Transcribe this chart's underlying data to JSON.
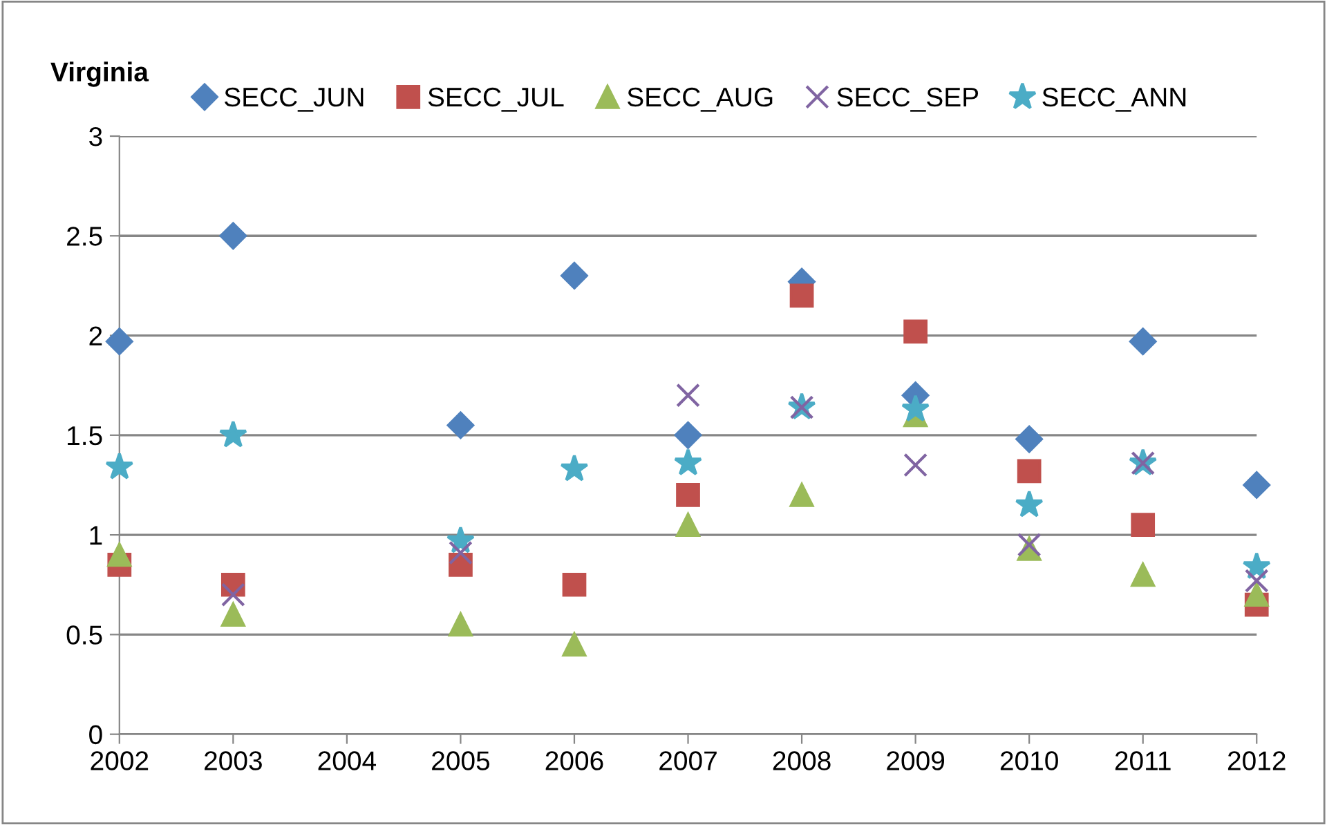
{
  "chart_data": {
    "type": "scatter",
    "title": "Virginia",
    "x": [
      2002,
      2003,
      2005,
      2006,
      2007,
      2008,
      2009,
      2010,
      2011,
      2012
    ],
    "series": [
      {
        "name": "SECC_JUN",
        "color": "#4f81bd",
        "marker": "diamond",
        "values": [
          1.97,
          2.5,
          1.55,
          2.3,
          1.5,
          2.27,
          1.7,
          1.48,
          1.97,
          1.25
        ]
      },
      {
        "name": "SECC_JUL",
        "color": "#c0504d",
        "marker": "square",
        "values": [
          0.85,
          0.75,
          0.85,
          0.75,
          1.2,
          2.2,
          2.02,
          1.32,
          1.05,
          0.65
        ]
      },
      {
        "name": "SECC_AUG",
        "color": "#9bbb59",
        "marker": "triangle",
        "values": [
          0.9,
          0.6,
          0.55,
          0.45,
          1.05,
          1.2,
          1.6,
          0.93,
          0.8,
          0.7
        ]
      },
      {
        "name": "SECC_SEP",
        "color": "#8064a2",
        "marker": "cross",
        "values": [
          null,
          0.7,
          0.91,
          null,
          1.7,
          1.64,
          1.35,
          0.95,
          1.36,
          0.77
        ]
      },
      {
        "name": "SECC_ANN",
        "color": "#4bacc6",
        "marker": "star",
        "values": [
          1.34,
          1.5,
          0.97,
          1.33,
          1.36,
          1.64,
          1.63,
          1.15,
          1.36,
          0.84
        ]
      }
    ],
    "xlim": [
      2002,
      2012
    ],
    "xticks": [
      2002,
      2003,
      2004,
      2005,
      2006,
      2007,
      2008,
      2009,
      2010,
      2011,
      2012
    ],
    "ylim": [
      0,
      3
    ],
    "yticks": [
      0,
      0.5,
      1,
      1.5,
      2,
      2.5,
      3
    ],
    "grid": "y",
    "legend": "top"
  }
}
